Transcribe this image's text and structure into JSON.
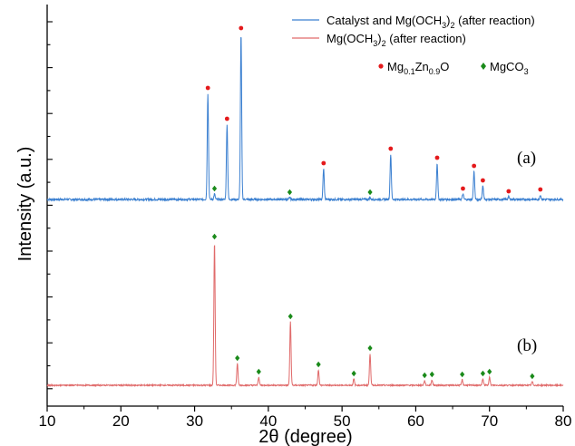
{
  "chart_data": {
    "type": "line",
    "xlabel": "2θ (degree)",
    "ylabel": "Intensity (a.u.)",
    "xlim": [
      10,
      80
    ],
    "xticks": [
      10,
      20,
      30,
      40,
      50,
      60,
      70,
      80
    ],
    "grid": false,
    "legend": {
      "placement": "top-right",
      "line_entries": [
        {
          "name_main": "Catalyst and Mg(OCH",
          "name_sub": "3",
          "name_close": ")",
          "name_sub2": "2",
          "name_tail": " (after reaction)",
          "color": "#3a7fd0"
        },
        {
          "name_main": "Mg(OCH",
          "name_sub": "3",
          "name_close": ")",
          "name_sub2": "2",
          "name_tail": " (after reaction)",
          "color": "#e06a6a"
        }
      ],
      "marker_entries": [
        {
          "symbol": "circle",
          "color": "#e41a1c",
          "label_main": "Mg",
          "label_sub1": "0.1",
          "label_mid": "Zn",
          "label_sub2": "0.9",
          "label_tail": "O"
        },
        {
          "symbol": "diamond",
          "color": "#1a8a1a",
          "label": "MgCO",
          "label_sub": "3"
        }
      ]
    },
    "series": [
      {
        "name": "Catalyst and Mg(OCH3)2 (after reaction)",
        "panel_label": "(a)",
        "color": "#3a7fd0",
        "baseline": 0,
        "peaks": [
          {
            "x": 31.8,
            "h": 117,
            "m": "circle"
          },
          {
            "x": 32.7,
            "h": 6,
            "m": "diamond"
          },
          {
            "x": 34.4,
            "h": 83,
            "m": "circle"
          },
          {
            "x": 36.3,
            "h": 183,
            "m": "circle"
          },
          {
            "x": 42.9,
            "h": 2,
            "m": "diamond"
          },
          {
            "x": 47.5,
            "h": 34,
            "m": "circle"
          },
          {
            "x": 53.8,
            "h": 2,
            "m": "diamond"
          },
          {
            "x": 56.6,
            "h": 50,
            "m": "circle"
          },
          {
            "x": 62.9,
            "h": 40,
            "m": "circle"
          },
          {
            "x": 66.4,
            "h": 6,
            "m": "circle"
          },
          {
            "x": 67.9,
            "h": 31,
            "m": "circle"
          },
          {
            "x": 69.1,
            "h": 15,
            "m": "circle"
          },
          {
            "x": 72.6,
            "h": 3,
            "m": "circle"
          },
          {
            "x": 76.9,
            "h": 5,
            "m": "circle"
          }
        ]
      },
      {
        "name": "Mg(OCH3)2 (after reaction)",
        "panel_label": "(b)",
        "color": "#e06a6a",
        "baseline": -205,
        "peaks": [
          {
            "x": 32.7,
            "h": 158,
            "m": "diamond"
          },
          {
            "x": 35.8,
            "h": 24,
            "m": "diamond"
          },
          {
            "x": 38.7,
            "h": 9,
            "m": "diamond"
          },
          {
            "x": 43.0,
            "h": 70,
            "m": "diamond"
          },
          {
            "x": 46.8,
            "h": 17,
            "m": "diamond"
          },
          {
            "x": 51.6,
            "h": 7,
            "m": "diamond"
          },
          {
            "x": 53.8,
            "h": 35,
            "m": "diamond"
          },
          {
            "x": 61.2,
            "h": 5,
            "m": "diamond"
          },
          {
            "x": 62.2,
            "h": 6,
            "m": "diamond"
          },
          {
            "x": 66.3,
            "h": 6,
            "m": "diamond"
          },
          {
            "x": 69.1,
            "h": 7,
            "m": "diamond"
          },
          {
            "x": 70.0,
            "h": 9,
            "m": "diamond"
          },
          {
            "x": 75.8,
            "h": 4,
            "m": "diamond"
          }
        ]
      }
    ]
  }
}
